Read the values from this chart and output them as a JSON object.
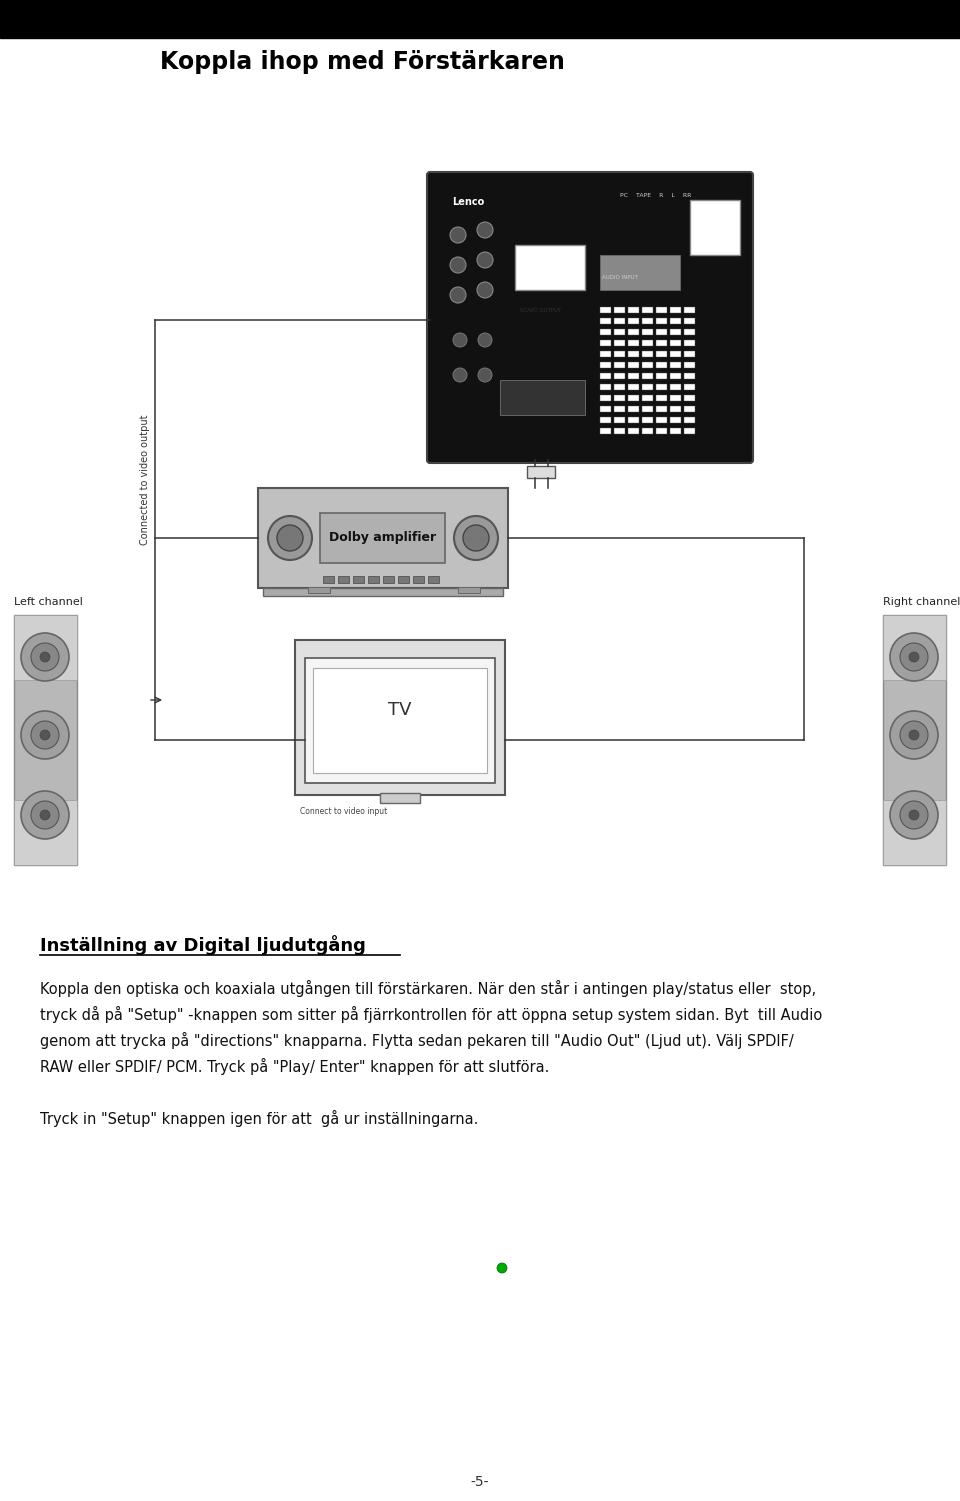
{
  "page_title": "Koppla ihop med Förstärkaren",
  "header_bg": "#000000",
  "body_bg": "#ffffff",
  "section_title": "Inställning av Digital ljudutgång",
  "paragraph1": "Koppla den optiska och koaxiala utgången till förstärkaren. När den står i antingen play/status eller  stop,",
  "paragraph2": "tryck då på \"Setup\" -knappen som sitter på fjärrkontrollen för att öppna setup system sidan. Byt  till Audio",
  "paragraph3": "genom att trycka på \"directions\" knapparna. Flytta sedan pekaren till \"Audio Out\" (Ljud ut). Välj SPDIF/",
  "paragraph4": "RAW eller SPDIF/ PCM. Tryck på \"Play/ Enter\" knappen för att slutföra.",
  "paragraph5": "Tryck in \"Setup\" knappen igen för att  gå ur inställningarna.",
  "page_number": "-5-",
  "left_label": "Left channel",
  "right_label": "Right channel",
  "connected_label": "Connected to video output",
  "connect_video_input": "Connect to video input",
  "dolby_label": "Dolby amplifier",
  "tv_label": "TV",
  "lenco_label": "Lenco"
}
